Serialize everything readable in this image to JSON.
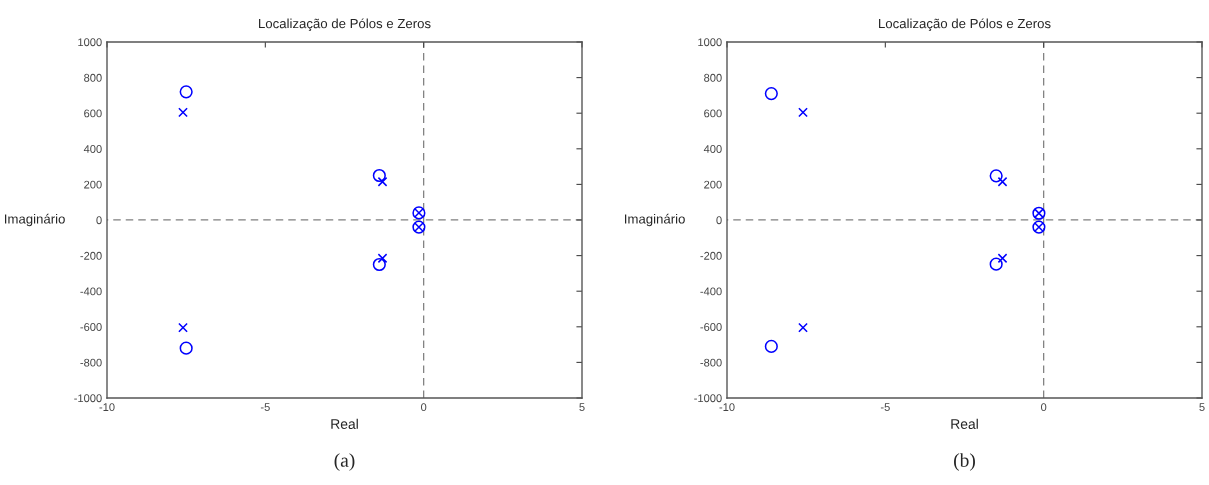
{
  "chart_data": [
    {
      "type": "scatter",
      "title": "Localização de Pólos e Zeros",
      "xlabel": "Real",
      "ylabel": "Imaginário",
      "annotations": [
        "(a)"
      ],
      "xlim": [
        -10,
        5
      ],
      "ylim": [
        -1000,
        1000
      ],
      "xticks": [
        -10,
        -5,
        0,
        5
      ],
      "yticks": [
        -1000,
        -800,
        -600,
        -400,
        -200,
        0,
        200,
        400,
        600,
        800,
        1000
      ],
      "grid": false,
      "legend": false,
      "ref_lines": [
        {
          "axis": "x",
          "value": 0,
          "color": "#7f7f7f",
          "line_style": "dashed"
        },
        {
          "axis": "y",
          "value": 0,
          "color": "#7f7f7f",
          "line_style": "dashed"
        }
      ],
      "series": [
        {
          "color": "#0000ff",
          "marker": "circle",
          "x": [
            -7.5,
            -7.5,
            -1.4,
            -1.4,
            -0.15,
            -0.15
          ],
          "values": [
            720,
            -720,
            250,
            -250,
            40,
            -40
          ]
        },
        {
          "color": "#0000ff",
          "marker": "cross",
          "x": [
            -7.6,
            -7.6,
            -1.3,
            -1.3,
            -0.15,
            -0.15
          ],
          "values": [
            605,
            -605,
            215,
            -215,
            40,
            -40
          ]
        }
      ]
    },
    {
      "type": "scatter",
      "title": "Localização de Pólos e Zeros",
      "xlabel": "Real",
      "ylabel": "Imaginário",
      "annotations": [
        "(b)"
      ],
      "xlim": [
        -10,
        5
      ],
      "ylim": [
        -1000,
        1000
      ],
      "xticks": [
        -10,
        -5,
        0,
        5
      ],
      "yticks": [
        -1000,
        -800,
        -600,
        -400,
        -200,
        0,
        200,
        400,
        600,
        800,
        1000
      ],
      "grid": false,
      "legend": false,
      "ref_lines": [
        {
          "axis": "x",
          "value": 0,
          "color": "#7f7f7f",
          "line_style": "dashed"
        },
        {
          "axis": "y",
          "value": 0,
          "color": "#7f7f7f",
          "line_style": "dashed"
        }
      ],
      "series": [
        {
          "color": "#0000ff",
          "marker": "circle",
          "x": [
            -8.6,
            -8.6,
            -1.5,
            -1.5,
            -0.15,
            -0.15
          ],
          "values": [
            710,
            -710,
            248,
            -248,
            38,
            -40
          ]
        },
        {
          "color": "#0000ff",
          "marker": "cross",
          "x": [
            -7.6,
            -7.6,
            -1.3,
            -1.3,
            -0.15,
            -0.15
          ],
          "values": [
            605,
            -605,
            215,
            -215,
            38,
            -40
          ]
        }
      ]
    }
  ]
}
